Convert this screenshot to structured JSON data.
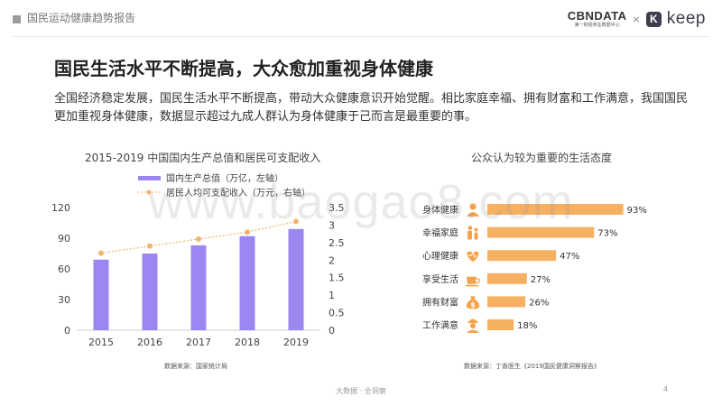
{
  "header": {
    "report_title": "国民运动健康趋势报告",
    "brand_cbn": "CBNDATA",
    "brand_cbn_sub": "第一财经商业数据中心",
    "brand_x": "×",
    "brand_keep_icon": "K",
    "brand_keep": "keep"
  },
  "main_title": "国民生活水平不断提高，大众愈加重视身体健康",
  "description": "全国经济稳定发展，国民生活水平不断提高，带动大众健康意识开始觉醒。相比家庭幸福、拥有财富和工作满意，我国国民更加重视身体健康，数据显示超过九成人群认为身体健康于己而言是最重要的事。",
  "watermark": "www.baogao8.com",
  "footer": {
    "text": "大数据 · 全洞察",
    "page": "4"
  },
  "colors": {
    "bar": "#9b86f2",
    "line": "#f5b26b",
    "bar2": "#f6b061",
    "icon": "#f6a24c"
  },
  "chart_data": [
    {
      "type": "bar",
      "title": "2015-2019 中国国内生产总值和居民可支配收入",
      "categories": [
        "2015",
        "2016",
        "2017",
        "2018",
        "2019"
      ],
      "series": [
        {
          "name": "国内生产总值（万亿，左轴）",
          "type": "bar",
          "axis": "left",
          "values": [
            69,
            75,
            83,
            92,
            99
          ]
        },
        {
          "name": "居民人均可支配收入（万元，右轴）",
          "type": "line",
          "axis": "right",
          "values": [
            2.2,
            2.4,
            2.6,
            2.8,
            3.1
          ]
        }
      ],
      "y_left": {
        "ylim": [
          0,
          120
        ],
        "ticks": [
          "0",
          "30",
          "60",
          "90",
          "120"
        ]
      },
      "y_right": {
        "ylim": [
          0,
          3.5
        ],
        "ticks": [
          "0",
          "0.5",
          "1",
          "1.5",
          "2",
          "2.5",
          "3",
          "3.5"
        ]
      },
      "legend_position": "top",
      "source": "数据来源：国家统计局"
    },
    {
      "type": "bar",
      "orientation": "horizontal",
      "title": "公众认为较为重要的生活态度",
      "categories": [
        "身体健康",
        "幸福家庭",
        "心理健康",
        "享受生活",
        "拥有财富",
        "工作满意"
      ],
      "values": [
        93,
        73,
        47,
        27,
        26,
        18
      ],
      "value_labels": [
        "93%",
        "73%",
        "47%",
        "27%",
        "26%",
        "18%"
      ],
      "icons": [
        "person-icon",
        "family-icon",
        "heart-icon",
        "cup-icon",
        "money-bag-icon",
        "worker-icon"
      ],
      "xlim": [
        0,
        100
      ],
      "source": "数据来源：丁香医生《2019国民健康洞察报告》"
    }
  ]
}
